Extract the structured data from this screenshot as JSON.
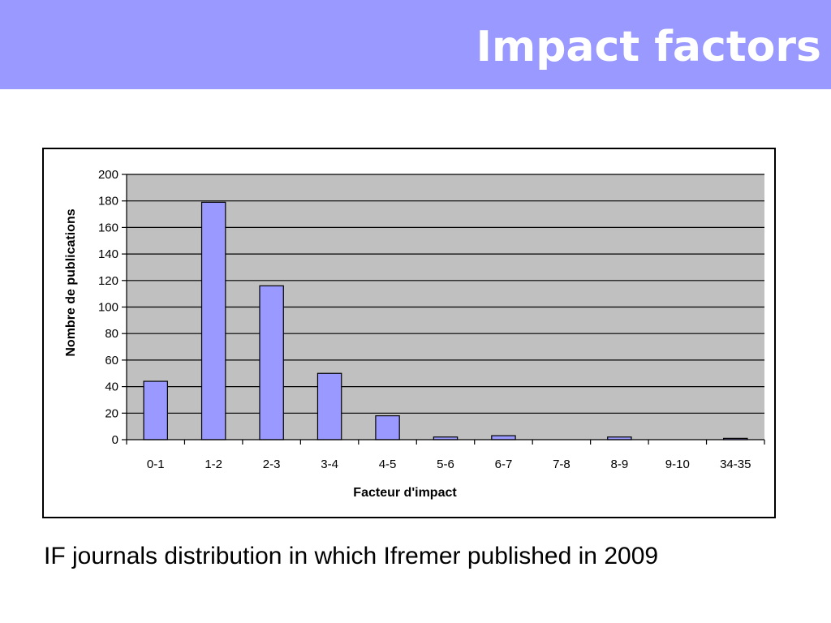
{
  "slide": {
    "title": "Impact factors",
    "caption": "IF journals distribution in which Ifremer published in 2009"
  },
  "colors": {
    "title_bar": "#9999ff",
    "title_text": "#ffffff",
    "plot_background": "#c0c0c0",
    "bar_fill": "#9999ff",
    "bar_stroke": "#000000",
    "gridline": "#000000"
  },
  "chart_data": {
    "type": "bar",
    "title": "",
    "xlabel": "Facteur d'impact",
    "ylabel": "Nombre de publications",
    "categories": [
      "0-1",
      "1-2",
      "2-3",
      "3-4",
      "4-5",
      "5-6",
      "6-7",
      "7-8",
      "8-9",
      "9-10",
      "34-35"
    ],
    "values": [
      44,
      179,
      116,
      50,
      18,
      2,
      3,
      0,
      2,
      0,
      1
    ],
    "ylim": [
      0,
      200
    ],
    "yticks": [
      0,
      20,
      40,
      60,
      80,
      100,
      120,
      140,
      160,
      180,
      200
    ],
    "grid": true,
    "legend": "none"
  }
}
